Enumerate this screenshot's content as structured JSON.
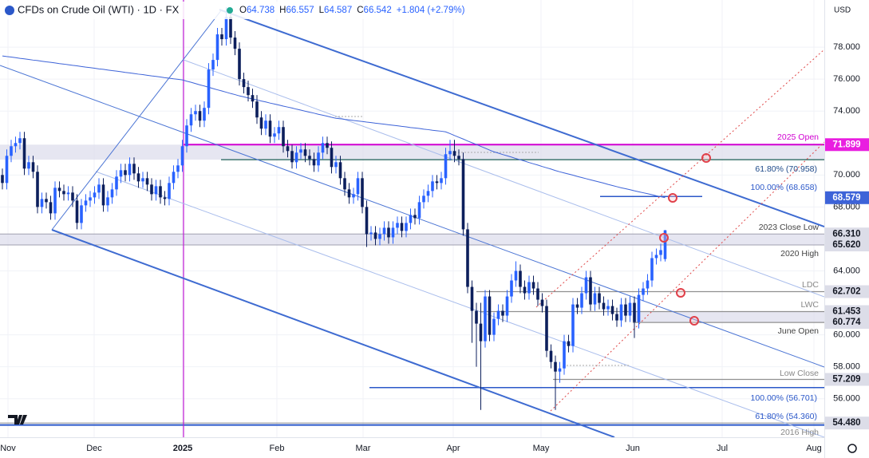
{
  "chart_data": {
    "type": "candlestick",
    "title": "CFDs on Crude Oil (WTI) · 1D · FX",
    "ohlc": [
      {
        "key": "O",
        "value": 64.738
      },
      {
        "key": "H",
        "value": 66.557
      },
      {
        "key": "L",
        "value": 64.587
      },
      {
        "key": "C",
        "value": 66.542
      }
    ],
    "change": "+1.804 (+2.79%)",
    "currency": "USD",
    "up_color": "#2962ff",
    "down_color": "#0c1f5c",
    "ma_color": "#3d63d8",
    "grid": true,
    "ylim": [
      53.59,
      80.95
    ],
    "yticks": [
      {
        "value": 56,
        "label": "56.000"
      },
      {
        "value": 58,
        "label": "58.000"
      },
      {
        "value": 60,
        "label": "60.000"
      },
      {
        "value": 64,
        "label": "64.000"
      },
      {
        "value": 68,
        "label": "68.000"
      },
      {
        "value": 70,
        "label": "70.000"
      },
      {
        "value": 74,
        "label": "74.000"
      },
      {
        "value": 76,
        "label": "76.000"
      },
      {
        "value": 78,
        "label": "78.000"
      }
    ],
    "categories": [
      "Nov",
      "Dec",
      "2025",
      "Feb",
      "Mar",
      "Apr",
      "May",
      "Jun",
      "Jul",
      "Aug"
    ],
    "candles": [
      [
        70.0,
        70.4,
        69.1,
        69.5
      ],
      [
        69.5,
        71.6,
        69.1,
        71.2
      ],
      [
        71.2,
        72.2,
        70.8,
        71.8
      ],
      [
        71.8,
        72.4,
        71.4,
        72.0
      ],
      [
        72.0,
        72.7,
        71.6,
        72.3
      ],
      [
        72.3,
        72.7,
        70.0,
        70.4
      ],
      [
        70.4,
        71.2,
        70.0,
        70.8
      ],
      [
        70.8,
        71.2,
        69.8,
        70.2
      ],
      [
        70.2,
        70.6,
        67.6,
        68.0
      ],
      [
        68.0,
        68.9,
        67.6,
        68.5
      ],
      [
        68.5,
        68.9,
        67.9,
        68.3
      ],
      [
        68.3,
        68.7,
        67.2,
        67.6
      ],
      [
        67.6,
        69.6,
        67.2,
        69.2
      ],
      [
        69.2,
        69.6,
        68.6,
        69.0
      ],
      [
        69.0,
        69.4,
        68.4,
        68.8
      ],
      [
        68.8,
        69.3,
        68.4,
        68.9
      ],
      [
        68.9,
        69.3,
        68.0,
        68.4
      ],
      [
        68.4,
        68.8,
        66.6,
        67.0
      ],
      [
        67.0,
        68.5,
        66.6,
        68.1
      ],
      [
        68.1,
        68.8,
        67.7,
        68.4
      ],
      [
        68.4,
        69.0,
        68.0,
        68.6
      ],
      [
        68.6,
        69.3,
        68.2,
        68.9
      ],
      [
        68.9,
        69.8,
        68.5,
        69.4
      ],
      [
        69.4,
        69.8,
        67.7,
        68.1
      ],
      [
        68.1,
        69.0,
        67.7,
        68.6
      ],
      [
        68.6,
        69.5,
        68.2,
        69.1
      ],
      [
        69.1,
        70.3,
        68.7,
        69.9
      ],
      [
        69.9,
        70.7,
        69.5,
        70.3
      ],
      [
        70.3,
        70.7,
        69.6,
        70.0
      ],
      [
        70.0,
        71.1,
        69.6,
        70.7
      ],
      [
        70.7,
        71.1,
        69.7,
        70.1
      ],
      [
        70.1,
        70.5,
        69.2,
        69.6
      ],
      [
        69.6,
        70.2,
        69.2,
        69.8
      ],
      [
        69.8,
        70.2,
        69.0,
        69.4
      ],
      [
        69.4,
        69.8,
        68.4,
        68.8
      ],
      [
        68.8,
        69.7,
        68.4,
        69.3
      ],
      [
        69.3,
        69.7,
        68.2,
        68.6
      ],
      [
        68.6,
        69.0,
        68.1,
        68.5
      ],
      [
        68.5,
        69.9,
        68.1,
        69.5
      ],
      [
        69.5,
        70.6,
        69.1,
        70.2
      ],
      [
        70.2,
        71.0,
        69.8,
        70.6
      ],
      [
        70.6,
        72.2,
        70.2,
        71.8
      ],
      [
        71.8,
        73.5,
        71.4,
        73.1
      ],
      [
        73.1,
        74.2,
        72.7,
        73.8
      ],
      [
        73.8,
        74.4,
        73.4,
        74.0
      ],
      [
        74.0,
        74.4,
        73.0,
        73.4
      ],
      [
        73.4,
        74.6,
        73.0,
        74.2
      ],
      [
        74.2,
        77.0,
        73.8,
        76.6
      ],
      [
        76.6,
        77.6,
        76.2,
        77.2
      ],
      [
        77.2,
        79.2,
        76.8,
        78.8
      ],
      [
        78.8,
        79.2,
        78.1,
        78.5
      ],
      [
        78.5,
        80.5,
        78.1,
        79.9
      ],
      [
        79.9,
        80.3,
        78.2,
        78.6
      ],
      [
        78.6,
        79.0,
        77.5,
        77.9
      ],
      [
        77.9,
        78.3,
        75.6,
        76.0
      ],
      [
        76.0,
        76.4,
        75.1,
        75.5
      ],
      [
        75.5,
        75.9,
        74.6,
        75.0
      ],
      [
        75.0,
        75.4,
        74.2,
        74.6
      ],
      [
        74.6,
        75.0,
        73.2,
        73.6
      ],
      [
        73.6,
        74.0,
        72.5,
        72.9
      ],
      [
        72.9,
        73.8,
        72.5,
        73.4
      ],
      [
        73.4,
        73.8,
        72.0,
        72.4
      ],
      [
        72.4,
        73.0,
        72.0,
        72.6
      ],
      [
        72.6,
        73.4,
        72.2,
        73.0
      ],
      [
        73.0,
        73.4,
        71.4,
        71.8
      ],
      [
        71.8,
        72.2,
        71.1,
        71.5
      ],
      [
        71.5,
        71.9,
        70.4,
        70.8
      ],
      [
        70.8,
        71.8,
        70.4,
        71.4
      ],
      [
        71.4,
        72.0,
        71.0,
        71.6
      ],
      [
        71.6,
        72.0,
        70.8,
        71.2
      ],
      [
        71.2,
        71.6,
        70.6,
        71.0
      ],
      [
        71.0,
        71.4,
        70.2,
        70.6
      ],
      [
        70.6,
        71.8,
        70.2,
        71.4
      ],
      [
        71.4,
        72.4,
        71.0,
        72.0
      ],
      [
        72.0,
        72.4,
        71.3,
        71.7
      ],
      [
        71.7,
        72.1,
        70.1,
        70.5
      ],
      [
        70.5,
        71.2,
        70.1,
        70.8
      ],
      [
        70.8,
        71.2,
        69.4,
        69.8
      ],
      [
        69.8,
        70.2,
        68.7,
        69.1
      ],
      [
        69.1,
        69.5,
        68.2,
        68.6
      ],
      [
        68.6,
        69.2,
        68.2,
        68.8
      ],
      [
        68.8,
        70.2,
        68.4,
        69.8
      ],
      [
        69.8,
        70.2,
        67.6,
        68.0
      ],
      [
        68.0,
        68.4,
        65.5,
        66.3
      ],
      [
        66.3,
        66.8,
        65.9,
        66.4
      ],
      [
        66.4,
        66.8,
        65.6,
        66.0
      ],
      [
        66.0,
        66.7,
        65.6,
        66.3
      ],
      [
        66.3,
        67.1,
        65.9,
        66.7
      ],
      [
        66.7,
        67.1,
        65.7,
        66.1
      ],
      [
        66.1,
        67.1,
        65.7,
        66.7
      ],
      [
        66.7,
        67.4,
        66.3,
        67.0
      ],
      [
        67.0,
        67.4,
        66.1,
        66.5
      ],
      [
        66.5,
        67.4,
        66.1,
        67.0
      ],
      [
        67.0,
        67.9,
        66.6,
        67.5
      ],
      [
        67.5,
        67.9,
        66.9,
        67.3
      ],
      [
        67.3,
        68.7,
        66.9,
        68.3
      ],
      [
        68.3,
        69.1,
        67.9,
        68.7
      ],
      [
        68.7,
        69.4,
        68.3,
        69.0
      ],
      [
        69.0,
        70.0,
        68.6,
        69.6
      ],
      [
        69.6,
        70.0,
        69.1,
        69.5
      ],
      [
        69.5,
        70.2,
        69.1,
        69.8
      ],
      [
        69.8,
        71.7,
        69.4,
        71.3
      ],
      [
        71.3,
        72.2,
        70.9,
        71.5
      ],
      [
        71.5,
        72.2,
        70.8,
        71.2
      ],
      [
        71.2,
        71.6,
        70.6,
        71.0
      ],
      [
        71.0,
        71.4,
        66.2,
        66.6
      ],
      [
        66.6,
        67.0,
        62.6,
        63.0
      ],
      [
        63.0,
        63.4,
        59.5,
        61.5
      ],
      [
        61.5,
        62.0,
        58.0,
        60.7
      ],
      [
        60.7,
        62.0,
        55.3,
        59.6
      ],
      [
        59.6,
        62.8,
        59.2,
        62.4
      ],
      [
        62.4,
        62.8,
        59.6,
        60.0
      ],
      [
        60.0,
        61.4,
        59.6,
        61.0
      ],
      [
        61.0,
        61.9,
        60.6,
        61.5
      ],
      [
        61.5,
        61.9,
        60.8,
        61.2
      ],
      [
        61.2,
        62.8,
        60.8,
        62.4
      ],
      [
        62.4,
        63.8,
        62.0,
        63.4
      ],
      [
        63.4,
        64.6,
        63.0,
        64.0
      ],
      [
        64.0,
        64.4,
        62.6,
        63.0
      ],
      [
        63.0,
        63.4,
        62.2,
        62.6
      ],
      [
        62.6,
        63.7,
        62.2,
        63.3
      ],
      [
        63.3,
        63.7,
        62.5,
        62.9
      ],
      [
        62.9,
        63.3,
        61.8,
        62.2
      ],
      [
        62.2,
        62.6,
        61.4,
        61.8
      ],
      [
        61.8,
        62.2,
        58.6,
        59.0
      ],
      [
        59.0,
        59.4,
        57.9,
        58.3
      ],
      [
        58.3,
        58.7,
        55.3,
        57.7
      ],
      [
        57.7,
        58.3,
        57.0,
        57.9
      ],
      [
        57.9,
        60.0,
        57.5,
        59.6
      ],
      [
        59.6,
        60.0,
        58.9,
        59.3
      ],
      [
        59.3,
        62.3,
        58.9,
        61.9
      ],
      [
        61.9,
        62.3,
        61.3,
        61.7
      ],
      [
        61.7,
        63.0,
        61.3,
        62.6
      ],
      [
        62.6,
        64.0,
        62.2,
        63.6
      ],
      [
        63.6,
        64.0,
        61.5,
        61.9
      ],
      [
        61.9,
        63.0,
        61.5,
        62.6
      ],
      [
        62.6,
        63.0,
        61.6,
        62.0
      ],
      [
        62.0,
        62.4,
        61.2,
        61.6
      ],
      [
        61.6,
        62.2,
        61.2,
        61.8
      ],
      [
        61.8,
        62.2,
        60.9,
        61.3
      ],
      [
        61.3,
        61.7,
        60.5,
        60.9
      ],
      [
        60.9,
        62.3,
        60.5,
        61.9
      ],
      [
        61.9,
        62.3,
        60.8,
        61.2
      ],
      [
        61.2,
        62.4,
        60.8,
        62.0
      ],
      [
        62.0,
        62.4,
        59.8,
        60.8
      ],
      [
        60.8,
        62.9,
        60.4,
        62.5
      ],
      [
        62.5,
        63.3,
        62.1,
        62.9
      ],
      [
        62.9,
        63.8,
        62.5,
        63.4
      ],
      [
        63.4,
        65.2,
        63.0,
        64.8
      ],
      [
        64.8,
        65.4,
        64.4,
        65.0
      ],
      [
        65.0,
        65.7,
        64.6,
        65.3
      ],
      [
        64.738,
        66.557,
        64.587,
        66.542
      ]
    ],
    "moving_average": [
      77.45,
      77.41,
      77.38,
      77.34,
      77.3,
      77.27,
      77.23,
      77.19,
      77.16,
      77.12,
      77.08,
      77.05,
      77.01,
      76.97,
      76.94,
      76.9,
      76.86,
      76.83,
      76.79,
      76.75,
      76.72,
      76.68,
      76.64,
      76.61,
      76.57,
      76.53,
      76.5,
      76.46,
      76.42,
      76.39,
      76.35,
      76.31,
      76.28,
      76.24,
      76.2,
      76.17,
      76.13,
      76.09,
      76.06,
      76.02,
      75.99,
      75.95,
      75.87,
      75.8,
      75.72,
      75.64,
      75.57,
      75.49,
      75.41,
      75.33,
      75.26,
      75.18,
      75.1,
      75.03,
      74.95,
      74.89,
      74.82,
      74.76,
      74.7,
      74.63,
      74.57,
      74.5,
      74.44,
      74.38,
      74.31,
      74.25,
      74.19,
      74.12,
      74.06,
      73.99,
      73.93,
      73.87,
      73.8,
      73.74,
      73.68,
      73.61,
      73.55,
      73.52,
      73.48,
      73.45,
      73.41,
      73.38,
      73.35,
      73.31,
      73.28,
      73.24,
      73.21,
      73.18,
      73.14,
      73.11,
      73.08,
      73.04,
      73.01,
      72.97,
      72.94,
      72.91,
      72.87,
      72.84,
      72.8,
      72.77,
      72.74,
      72.7,
      72.59,
      72.47,
      72.36,
      72.25,
      72.13,
      72.02,
      71.91,
      71.79,
      71.68,
      71.56,
      71.45,
      71.37,
      71.28,
      71.2,
      71.12,
      71.03,
      70.95,
      70.87,
      70.78,
      70.7,
      70.62,
      70.53,
      70.45,
      70.37,
      70.28,
      70.2,
      70.13,
      70.06,
      69.99,
      69.91,
      69.84,
      69.77,
      69.7,
      69.63,
      69.56,
      69.49,
      69.41,
      69.34,
      69.27,
      69.2,
      69.14,
      69.08,
      69.01,
      68.95,
      68.89,
      68.83,
      68.77,
      68.7,
      68.64,
      68.579
    ],
    "price_labels": [
      {
        "price": 71.899,
        "color": "#e91ee0",
        "text_color": "#ffffff"
      },
      {
        "price": 68.579,
        "color": "#3d63d8",
        "text_color": "#ffffff"
      },
      {
        "price": {
          "value": 66.31,
          "label": "66.310"
        },
        "color": "#dcdde8",
        "text_color": "#131722"
      },
      {
        "price": {
          "value": 65.62,
          "label": "65.620"
        },
        "color": "#dcdde8",
        "text_color": "#131722"
      },
      {
        "price": 62.702,
        "color": "#dcdde8",
        "text_color": "#131722"
      },
      {
        "price": 61.453,
        "color": "#dcdde8",
        "text_color": "#131722"
      },
      {
        "price": 60.774,
        "color": "#dcdde8",
        "text_color": "#131722"
      },
      {
        "price": 57.209,
        "color": "#dcdde8",
        "text_color": "#131722"
      },
      {
        "price": {
          "value": 54.48,
          "label": "54.480"
        },
        "color": "#dcdde8",
        "text_color": "#131722"
      }
    ],
    "levels": [
      {
        "value": 70.958,
        "label": "61.80% (70.958)"
      },
      {
        "value": 68.658,
        "label": "100.00% (68.658)"
      },
      {
        "value": 56.701,
        "label": "100.00% (56.701)"
      },
      {
        "value": 54.36,
        "label": "61.80% (54.360)"
      }
    ],
    "annotations": [
      "2025 Open",
      "2023 Close Low",
      "2020 High",
      "LDC",
      "LWC",
      "June Open",
      "Low Close",
      "2016 High"
    ]
  }
}
